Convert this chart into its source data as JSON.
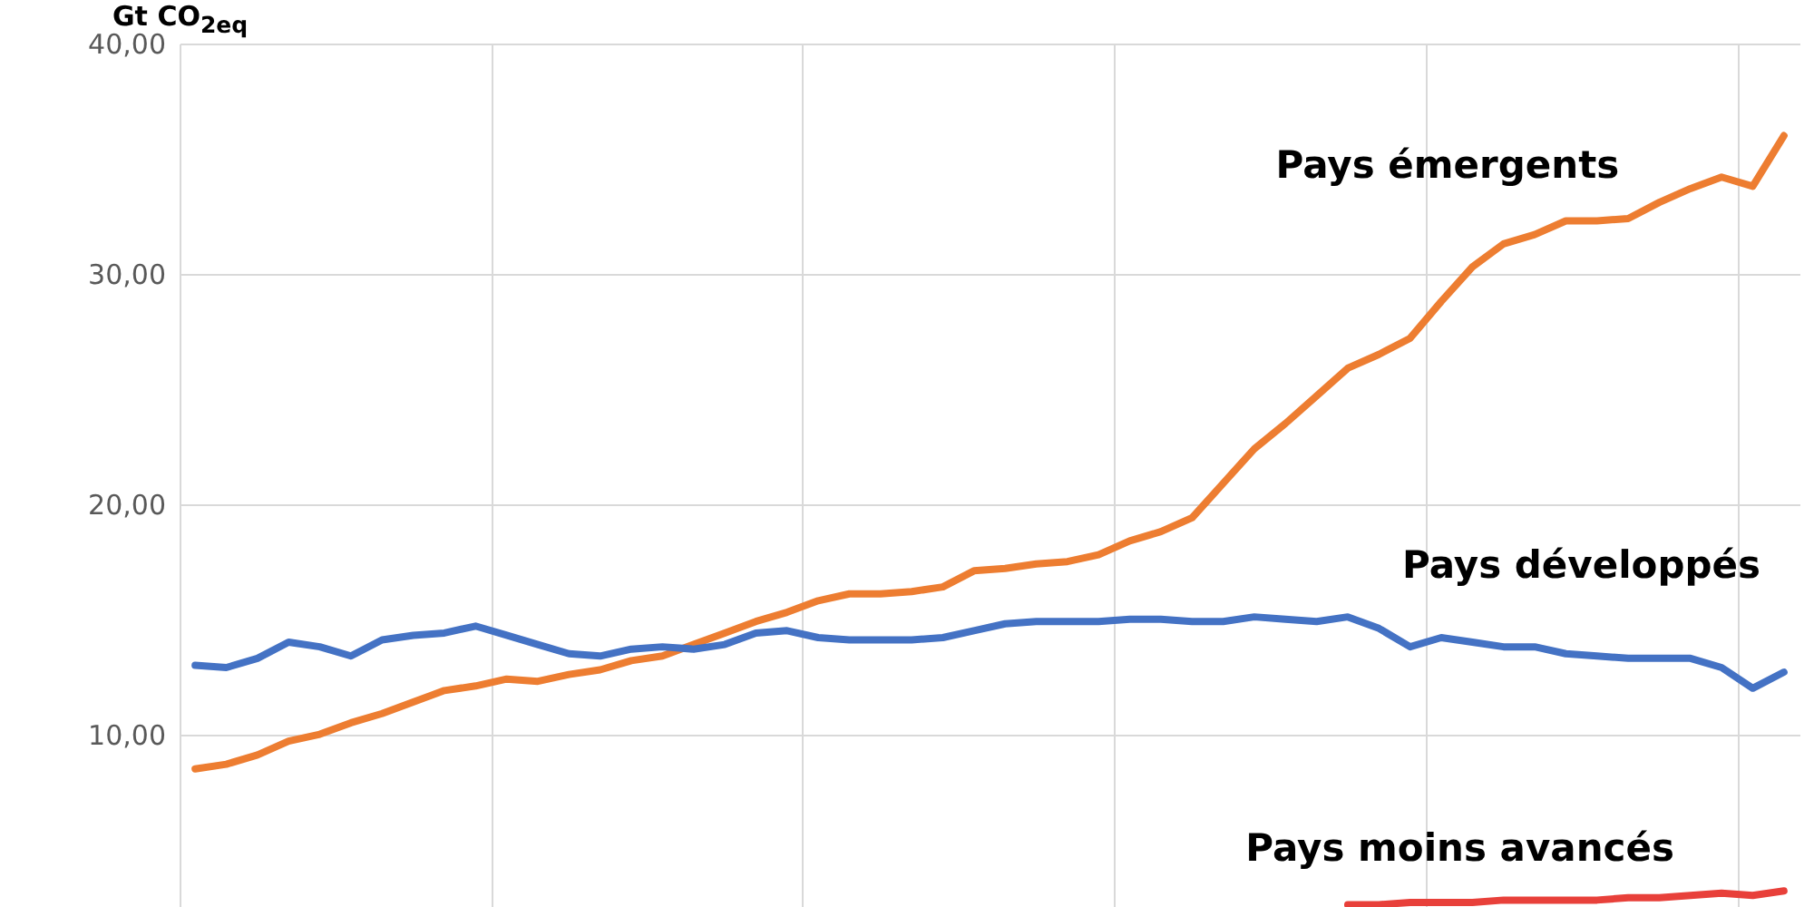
{
  "chart_data": {
    "type": "line",
    "ylabel": "Gt CO$_{2eq}$",
    "categories": [
      null,
      null,
      null,
      null,
      null,
      null,
      null,
      null,
      null,
      null,
      null,
      null,
      null,
      null,
      null,
      null,
      null,
      null,
      null,
      null,
      null,
      null,
      null,
      null,
      null,
      null,
      null,
      null,
      null,
      null,
      null,
      null,
      null,
      null,
      null,
      null,
      null,
      null,
      null,
      null,
      null,
      null,
      null,
      null,
      null,
      null,
      null,
      null,
      null,
      null,
      null,
      null
    ],
    "series": [
      {
        "name": "Pays émergents",
        "color": "#ed7d31",
        "values": [
          8.5,
          8.7,
          9.1,
          9.7,
          10.0,
          10.5,
          10.9,
          11.4,
          11.9,
          12.1,
          12.4,
          12.3,
          12.6,
          12.8,
          13.2,
          13.4,
          13.9,
          14.4,
          14.9,
          15.3,
          15.8,
          16.1,
          16.1,
          16.2,
          16.4,
          17.1,
          17.2,
          17.4,
          17.5,
          17.8,
          18.4,
          18.8,
          19.4,
          20.9,
          22.4,
          23.5,
          24.7,
          25.9,
          26.5,
          27.2,
          28.8,
          30.3,
          31.3,
          31.7,
          32.3,
          32.3,
          32.4,
          33.1,
          33.7,
          34.2,
          33.8,
          36.0
        ]
      },
      {
        "name": "Pays développés",
        "color": "#4472c4",
        "values": [
          13.0,
          12.9,
          13.3,
          14.0,
          13.8,
          13.4,
          14.1,
          14.3,
          14.4,
          14.7,
          14.3,
          13.9,
          13.5,
          13.4,
          13.7,
          13.8,
          13.7,
          13.9,
          14.4,
          14.5,
          14.2,
          14.1,
          14.1,
          14.1,
          14.2,
          14.5,
          14.8,
          14.9,
          14.9,
          14.9,
          15.0,
          15.0,
          14.9,
          14.9,
          15.1,
          15.0,
          14.9,
          15.1,
          14.6,
          13.8,
          14.2,
          14.0,
          13.8,
          13.8,
          13.5,
          13.4,
          13.3,
          13.3,
          13.3,
          12.9,
          12.0,
          12.7
        ]
      },
      {
        "name": "Pays moins avancés",
        "color": "#e8403a",
        "values": [
          null,
          null,
          null,
          null,
          null,
          null,
          null,
          null,
          null,
          null,
          null,
          null,
          null,
          null,
          null,
          null,
          null,
          null,
          null,
          null,
          null,
          null,
          null,
          null,
          null,
          null,
          null,
          null,
          null,
          null,
          null,
          null,
          null,
          null,
          null,
          null,
          null,
          2.6,
          2.6,
          2.7,
          2.7,
          2.7,
          2.8,
          2.8,
          2.8,
          2.8,
          2.9,
          2.9,
          3.0,
          3.1,
          3.0,
          3.2
        ]
      }
    ],
    "ylim": [
      2.5,
      40
    ],
    "yticks": [
      {
        "value": 10,
        "label": "10,00"
      },
      {
        "value": 20,
        "label": "20,00"
      },
      {
        "value": 30,
        "label": "30,00"
      },
      {
        "value": 40,
        "label": "40,00"
      }
    ],
    "grid": true,
    "legend": false
  }
}
